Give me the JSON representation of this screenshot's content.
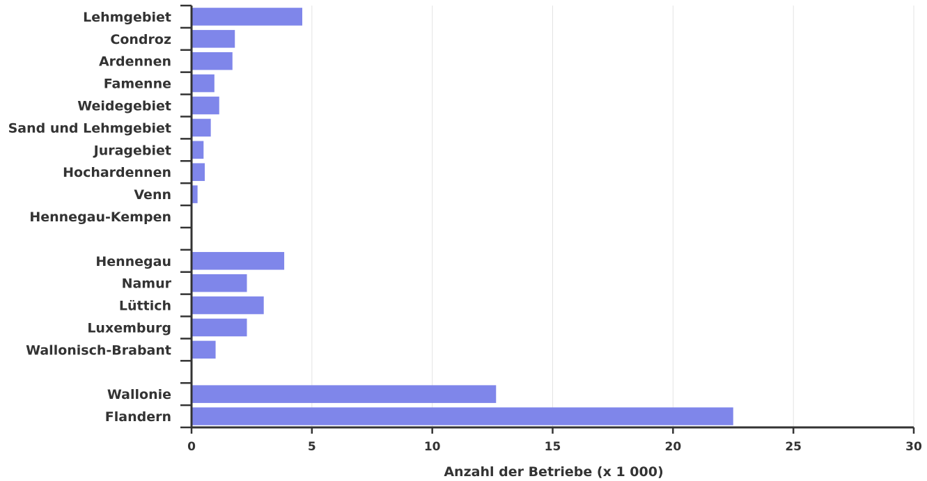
{
  "chart_data": {
    "type": "bar",
    "orientation": "horizontal",
    "title": "",
    "xlabel": "Anzahl der Betriebe (x 1 000)",
    "ylabel": "",
    "xlim": [
      0,
      30
    ],
    "xticks": [
      "0",
      "5",
      "10",
      "15",
      "20",
      "25",
      "30"
    ],
    "grid": "vertical",
    "categories": [
      "Lehmgebiet",
      "Condroz",
      "Ardennen",
      "Famenne",
      "Weidegebiet",
      "Sand und Lehmgebiet",
      "Juragebiet",
      "Hochardennen",
      "Venn",
      "Hennegau-Kempen",
      "",
      "Hennegau",
      "Namur",
      "Lüttich",
      "Luxemburg",
      "Wallonisch-Brabant",
      "",
      "Wallonie",
      "Flandern"
    ],
    "values": [
      4.6,
      1.8,
      1.7,
      0.95,
      1.15,
      0.8,
      0.5,
      0.55,
      0.25,
      0.02,
      null,
      3.85,
      2.3,
      3.0,
      2.3,
      1.0,
      null,
      12.65,
      22.5
    ],
    "bar_color": "#7f86ea"
  }
}
